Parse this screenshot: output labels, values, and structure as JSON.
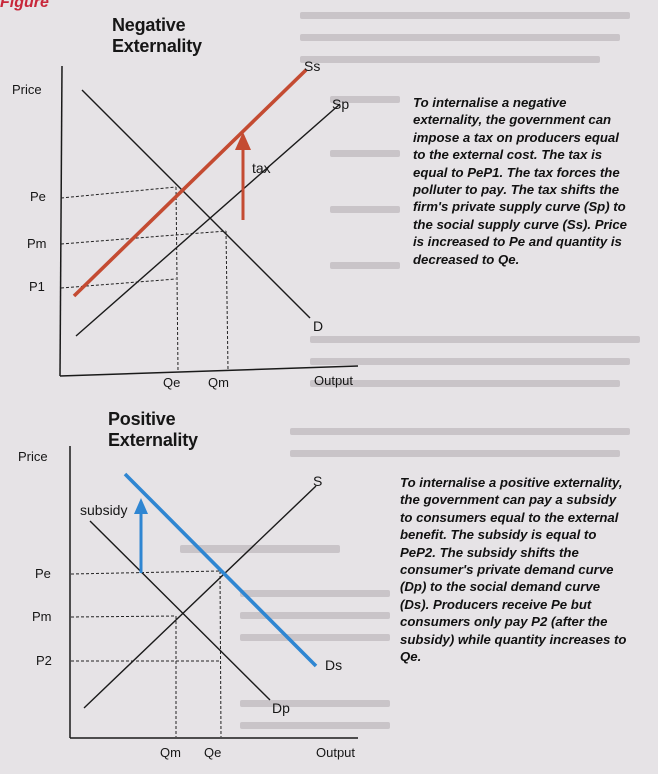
{
  "figure_label": "Figure",
  "negative": {
    "title": "Negative Externality",
    "price_label": "Price",
    "output_label": "Output",
    "y_ticks": {
      "pe": "Pe",
      "pm": "Pm",
      "p1": "P1"
    },
    "x_ticks": {
      "qe": "Qe",
      "qm": "Qm"
    },
    "curves": {
      "ss": "Ss",
      "sp": "Sp",
      "d": "D"
    },
    "arrow_label": "tax",
    "caption": "To internalise a negative externality, the government can impose a tax on producers equal to the external cost. The tax is equal to PeP1. The tax forces the polluter to pay. The tax shifts the firm's private supply curve (Sp) to the social supply curve (Ss). Price is increased to Pe and quantity is decreased to Qe.",
    "highlight_color": "#c44b32"
  },
  "positive": {
    "title": "Positive Externality",
    "price_label": "Price",
    "output_label": "Output",
    "y_ticks": {
      "pe": "Pe",
      "pm": "Pm",
      "p2": "P2"
    },
    "x_ticks": {
      "qm": "Qm",
      "qe": "Qe"
    },
    "curves": {
      "s": "S",
      "ds": "Ds",
      "dp": "Dp"
    },
    "arrow_label": "subsidy",
    "caption": "To internalise a positive externality, the government can pay a subsidy to consumers equal to the external benefit. The subsidy is equal to PeP2. The subsidy shifts the consumer's private demand curve (Dp) to the social demand curve (Ds). Producers receive Pe but consumers only pay P2 (after the subsidy) while quantity increases to Qe.",
    "highlight_color": "#2f86d2"
  }
}
